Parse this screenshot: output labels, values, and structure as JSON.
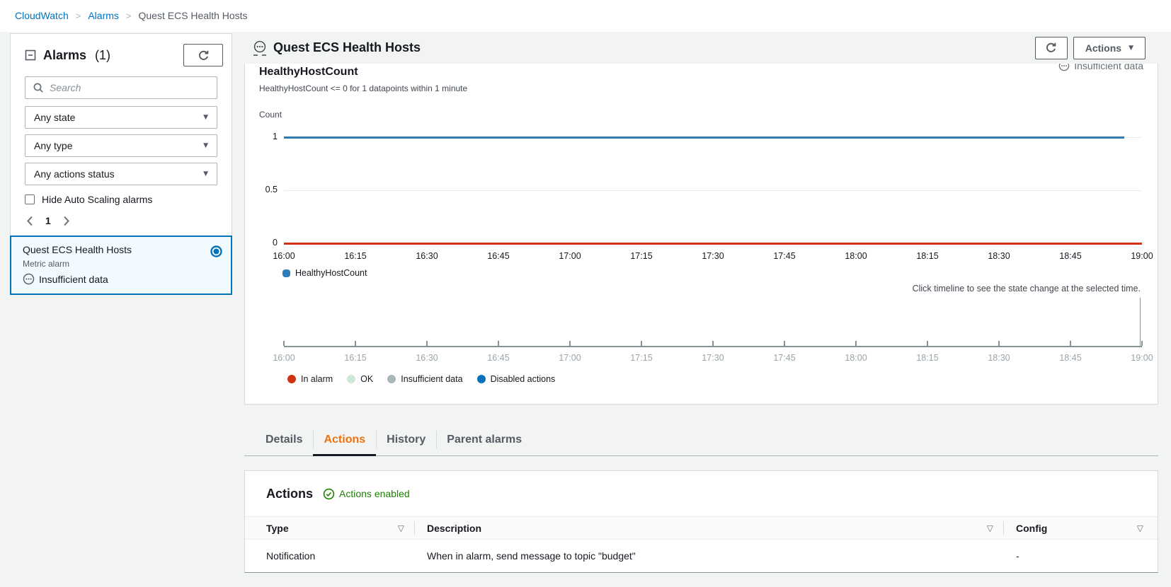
{
  "breadcrumb": {
    "items": [
      "CloudWatch",
      "Alarms",
      "Quest ECS Health Hosts"
    ]
  },
  "sidebar": {
    "title": "Alarms",
    "count": "(1)",
    "search": {
      "placeholder": "Search"
    },
    "filters": {
      "state": "Any state",
      "type": "Any type",
      "actions_status": "Any actions status"
    },
    "hide_autoscaling_label": "Hide Auto Scaling alarms",
    "pagination": {
      "current_page": "1"
    },
    "alarm_item": {
      "name": "Quest ECS Health Hosts",
      "type_label": "Metric alarm",
      "state": "Insufficient data",
      "selected": true
    }
  },
  "main_header": {
    "title": "Quest ECS Health Hosts",
    "actions_button": "Actions"
  },
  "chart_card_status": "Insufficient data",
  "chart_data": [
    {
      "type": "line",
      "title": "HealthyHostCount",
      "subtitle": "HealthyHostCount <= 0 for 1 datapoints within 1 minute",
      "ylabel": "Count",
      "ylim": [
        0,
        1
      ],
      "y_ticks": [
        1,
        0.5,
        0
      ],
      "x_ticks": [
        "16:00",
        "16:15",
        "16:30",
        "16:45",
        "17:00",
        "17:15",
        "17:30",
        "17:45",
        "18:00",
        "18:15",
        "18:30",
        "18:45",
        "19:00"
      ],
      "grid": true,
      "series": [
        {
          "name": "HealthyHostCount",
          "color": "#2e7db6",
          "value": 1,
          "start": "16:00",
          "end": "18:57",
          "end_fraction": 0.979
        }
      ],
      "threshold": {
        "value": 0,
        "color": "#d13212",
        "label": "alarm threshold"
      }
    },
    {
      "type": "timeline",
      "hint": "Click timeline to see the state change at the selected time.",
      "x_ticks": [
        "16:00",
        "16:15",
        "16:30",
        "16:45",
        "17:00",
        "17:15",
        "17:30",
        "17:45",
        "18:00",
        "18:15",
        "18:30",
        "18:45",
        "19:00"
      ],
      "states": [],
      "marker_x": "19:00",
      "legend_position": "bottom",
      "legend": [
        {
          "label": "In alarm",
          "color": "#d13212"
        },
        {
          "label": "OK",
          "color": "#cde9d6"
        },
        {
          "label": "Insufficient data",
          "color": "#aab7b8"
        },
        {
          "label": "Disabled actions",
          "color": "#0a72bb"
        }
      ]
    }
  ],
  "tabs": {
    "items": [
      {
        "label": "Details"
      },
      {
        "label": "Actions",
        "active": true
      },
      {
        "label": "History"
      },
      {
        "label": "Parent alarms"
      }
    ]
  },
  "actions_panel": {
    "title": "Actions",
    "status": "Actions enabled",
    "table": {
      "columns": [
        "Type",
        "Description",
        "Config"
      ],
      "rows": [
        {
          "type": "Notification",
          "description": "When in alarm, send message to topic \"budget\"",
          "config": "-"
        }
      ]
    }
  }
}
